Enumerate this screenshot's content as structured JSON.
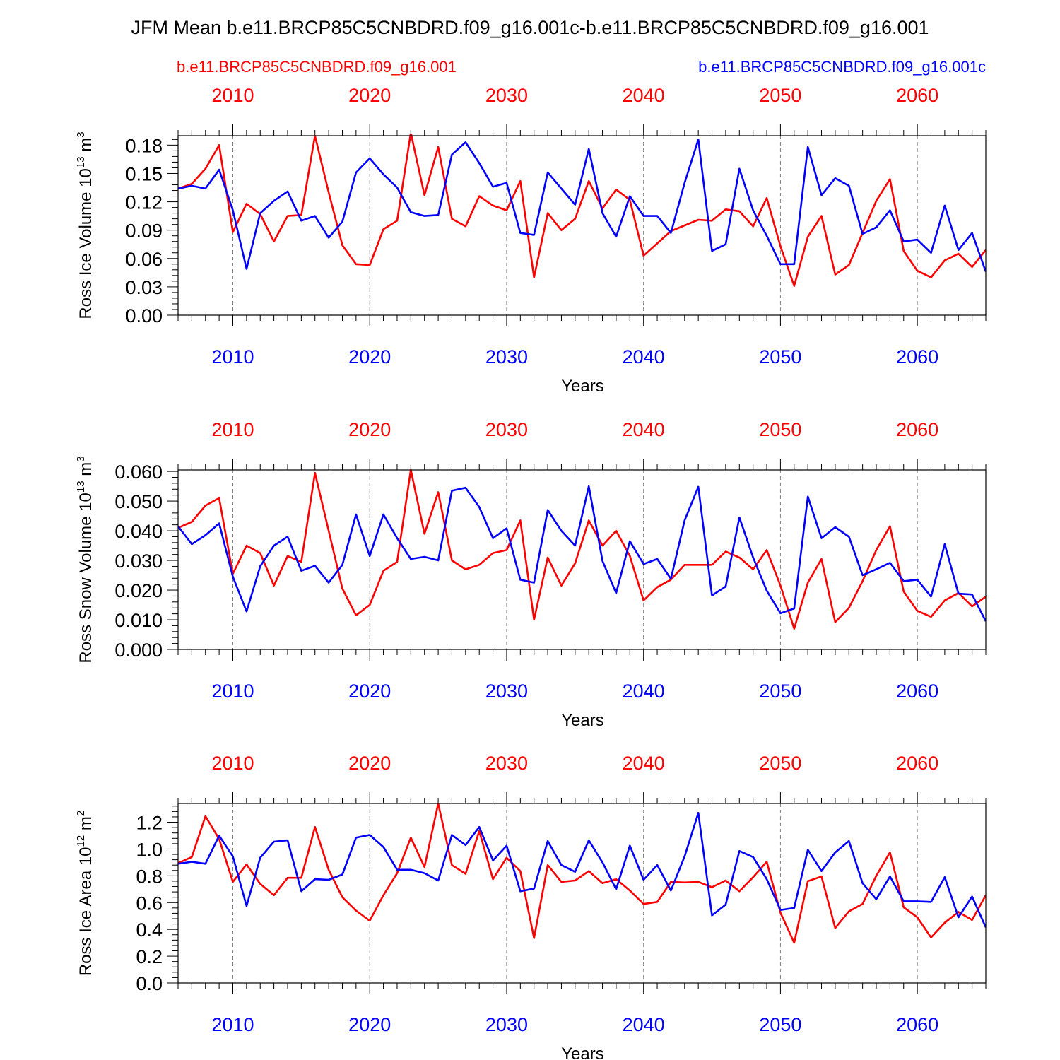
{
  "title": "JFM Mean b.e11.BRCP85C5CNBDRD.f09_g16.001c-b.e11.BRCP85C5CNBDRD.f09_g16.001",
  "legend": {
    "left": "b.e11.BRCP85C5CNBDRD.f09_g16.001",
    "right": "b.e11.BRCP85C5CNBDRD.f09_g16.001c"
  },
  "colors": {
    "case_red": "#ff0000",
    "case_blue": "#0000ff",
    "axis": "#000000",
    "grid": "#808080"
  },
  "chart_data": [
    {
      "type": "line",
      "ylabel": "Ross Ice Volume 10",
      "ylabel_exp": "13",
      "ylabel_unit": " m",
      "ylabel_unit_exp": "3",
      "xlabel": "Years",
      "xlim": [
        2006,
        2065
      ],
      "ylim": [
        0,
        0.19
      ],
      "yticks": [
        0,
        0.03,
        0.06,
        0.09,
        0.12,
        0.15,
        0.18
      ],
      "ytick_labels": [
        "0.00",
        "0.03",
        "0.06",
        "0.09",
        "0.12",
        "0.15",
        "0.18"
      ],
      "xticks": [
        2010,
        2020,
        2030,
        2040,
        2050,
        2060
      ],
      "xtick_labels": [
        "2010",
        "2020",
        "2030",
        "2040",
        "2050",
        "2060"
      ],
      "series": [
        {
          "name": "b.e11.BRCP85C5CNBDRD.f09_g16.001",
          "color": "#ff0000",
          "x_start": 2006,
          "values": [
            0.134,
            0.139,
            0.155,
            0.18,
            0.088,
            0.118,
            0.107,
            0.078,
            0.105,
            0.106,
            0.19,
            0.13,
            0.074,
            0.054,
            0.053,
            0.091,
            0.1,
            0.193,
            0.127,
            0.178,
            0.102,
            0.094,
            0.126,
            0.116,
            0.111,
            0.142,
            0.04,
            0.108,
            0.09,
            0.102,
            0.142,
            0.113,
            0.133,
            0.122,
            0.063,
            0.076,
            0.089,
            0.095,
            0.101,
            0.1,
            0.112,
            0.11,
            0.094,
            0.124,
            0.073,
            0.031,
            0.083,
            0.105,
            0.043,
            0.053,
            0.087,
            0.121,
            0.144,
            0.068,
            0.047,
            0.04,
            0.058,
            0.065,
            0.051,
            0.069
          ]
        },
        {
          "name": "b.e11.BRCP85C5CNBDRD.f09_g16.001c",
          "color": "#0000ff",
          "x_start": 2006,
          "values": [
            0.134,
            0.137,
            0.134,
            0.154,
            0.111,
            0.049,
            0.108,
            0.121,
            0.131,
            0.1,
            0.105,
            0.082,
            0.099,
            0.151,
            0.166,
            0.149,
            0.135,
            0.109,
            0.105,
            0.106,
            0.17,
            0.183,
            0.161,
            0.136,
            0.14,
            0.087,
            0.085,
            0.151,
            0.134,
            0.117,
            0.176,
            0.108,
            0.083,
            0.126,
            0.105,
            0.105,
            0.087,
            0.14,
            0.186,
            0.068,
            0.075,
            0.155,
            0.111,
            0.084,
            0.054,
            0.054,
            0.178,
            0.127,
            0.145,
            0.137,
            0.086,
            0.093,
            0.111,
            0.078,
            0.08,
            0.066,
            0.116,
            0.069,
            0.087,
            0.046
          ]
        }
      ]
    },
    {
      "type": "line",
      "ylabel": "Ross Snow Volume 10",
      "ylabel_exp": "13",
      "ylabel_unit": " m",
      "ylabel_unit_exp": "3",
      "xlabel": "Years",
      "xlim": [
        2006,
        2065
      ],
      "ylim": [
        0,
        0.0605
      ],
      "yticks": [
        0,
        0.01,
        0.02,
        0.03,
        0.04,
        0.05,
        0.06
      ],
      "ytick_labels": [
        "0.000",
        "0.010",
        "0.020",
        "0.030",
        "0.040",
        "0.050",
        "0.060"
      ],
      "xticks": [
        2010,
        2020,
        2030,
        2040,
        2050,
        2060
      ],
      "xtick_labels": [
        "2010",
        "2020",
        "2030",
        "2040",
        "2050",
        "2060"
      ],
      "series": [
        {
          "name": "b.e11.BRCP85C5CNBDRD.f09_g16.001",
          "color": "#ff0000",
          "x_start": 2006,
          "values": [
            0.041,
            0.043,
            0.0485,
            0.051,
            0.0255,
            0.035,
            0.0325,
            0.0215,
            0.0315,
            0.0295,
            0.0595,
            0.04,
            0.0205,
            0.0115,
            0.015,
            0.0265,
            0.0295,
            0.0605,
            0.039,
            0.053,
            0.03,
            0.027,
            0.0285,
            0.0325,
            0.0335,
            0.0435,
            0.01,
            0.031,
            0.0215,
            0.029,
            0.0435,
            0.035,
            0.04,
            0.0315,
            0.0165,
            0.021,
            0.0235,
            0.0285,
            0.0285,
            0.0285,
            0.033,
            0.031,
            0.027,
            0.0335,
            0.0215,
            0.007,
            0.0225,
            0.0305,
            0.0092,
            0.014,
            0.023,
            0.0335,
            0.0415,
            0.0195,
            0.013,
            0.011,
            0.0165,
            0.019,
            0.0145,
            0.0178
          ]
        },
        {
          "name": "b.e11.BRCP85C5CNBDRD.f09_g16.001c",
          "color": "#0000ff",
          "x_start": 2006,
          "values": [
            0.0415,
            0.0355,
            0.0385,
            0.0425,
            0.0245,
            0.0128,
            0.028,
            0.035,
            0.038,
            0.0265,
            0.0282,
            0.0225,
            0.0285,
            0.0455,
            0.0315,
            0.0455,
            0.0375,
            0.0305,
            0.0312,
            0.03,
            0.0535,
            0.0545,
            0.048,
            0.0375,
            0.0408,
            0.0235,
            0.0225,
            0.047,
            0.04,
            0.035,
            0.055,
            0.0298,
            0.019,
            0.0365,
            0.0288,
            0.0305,
            0.0238,
            0.0435,
            0.0548,
            0.0182,
            0.0212,
            0.0445,
            0.031,
            0.0198,
            0.0122,
            0.0138,
            0.0515,
            0.0375,
            0.0412,
            0.038,
            0.025,
            0.027,
            0.0292,
            0.023,
            0.0235,
            0.0178,
            0.0355,
            0.0188,
            0.0185,
            0.0095
          ]
        }
      ]
    },
    {
      "type": "line",
      "ylabel": "Ross Ice Area 10",
      "ylabel_exp": "12",
      "ylabel_unit": " m",
      "ylabel_unit_exp": "2",
      "xlabel": "Years",
      "xlim": [
        2006,
        2065
      ],
      "ylim": [
        0,
        1.34
      ],
      "yticks": [
        0,
        0.2,
        0.4,
        0.6,
        0.8,
        1.0,
        1.2
      ],
      "ytick_labels": [
        "0.0",
        "0.2",
        "0.4",
        "0.6",
        "0.8",
        "1.0",
        "1.2"
      ],
      "xticks": [
        2010,
        2020,
        2030,
        2040,
        2050,
        2060
      ],
      "xtick_labels": [
        "2010",
        "2020",
        "2030",
        "2040",
        "2050",
        "2060"
      ],
      "series": [
        {
          "name": "b.e11.BRCP85C5CNBDRD.f09_g16.001",
          "color": "#ff0000",
          "x_start": 2006,
          "values": [
            0.895,
            0.94,
            1.245,
            1.075,
            0.755,
            0.885,
            0.74,
            0.655,
            0.785,
            0.785,
            1.165,
            0.845,
            0.64,
            0.54,
            0.465,
            0.655,
            0.82,
            1.085,
            0.865,
            1.34,
            0.88,
            0.815,
            1.135,
            0.775,
            0.935,
            0.835,
            0.335,
            0.88,
            0.755,
            0.765,
            0.835,
            0.745,
            0.775,
            0.69,
            0.59,
            0.605,
            0.755,
            0.75,
            0.755,
            0.715,
            0.765,
            0.685,
            0.79,
            0.905,
            0.525,
            0.3,
            0.76,
            0.795,
            0.41,
            0.535,
            0.59,
            0.8,
            0.975,
            0.565,
            0.49,
            0.34,
            0.45,
            0.53,
            0.47,
            0.655
          ]
        },
        {
          "name": "b.e11.BRCP85C5CNBDRD.f09_g16.001c",
          "color": "#0000ff",
          "x_start": 2006,
          "values": [
            0.89,
            0.905,
            0.89,
            1.1,
            0.945,
            0.575,
            0.935,
            1.055,
            1.065,
            0.685,
            0.775,
            0.77,
            0.81,
            1.085,
            1.105,
            1.015,
            0.845,
            0.845,
            0.82,
            0.765,
            1.105,
            1.03,
            1.165,
            0.915,
            1.025,
            0.685,
            0.705,
            1.06,
            0.88,
            0.83,
            1.065,
            0.9,
            0.7,
            1.025,
            0.77,
            0.88,
            0.69,
            0.945,
            1.27,
            0.505,
            0.585,
            0.985,
            0.94,
            0.775,
            0.545,
            0.56,
            0.995,
            0.835,
            0.975,
            1.06,
            0.745,
            0.625,
            0.795,
            0.61,
            0.61,
            0.605,
            0.79,
            0.49,
            0.645,
            0.415
          ]
        }
      ]
    }
  ]
}
